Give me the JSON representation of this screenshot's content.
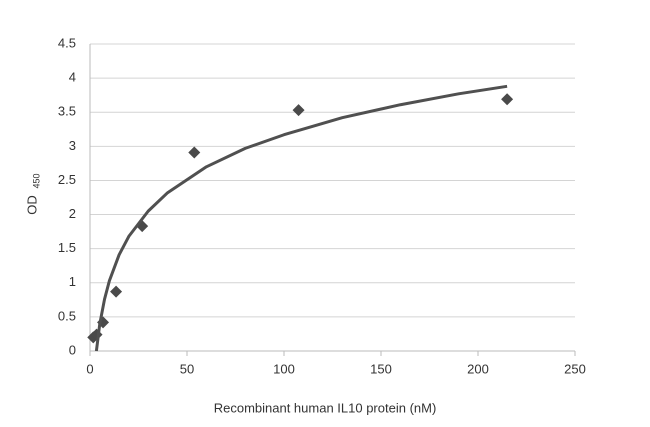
{
  "chart_data": {
    "type": "scatter",
    "xlabel": "Recombinant human IL10 protein (nM)",
    "ylabel": "OD",
    "ylabel_subscript": "450",
    "xlim": [
      0,
      250
    ],
    "xticks": [
      0,
      50,
      100,
      150,
      200,
      250
    ],
    "ylim": [
      0,
      4.5
    ],
    "yticks": [
      0,
      0.5,
      1,
      1.5,
      2,
      2.5,
      3,
      3.5,
      4,
      4.5
    ],
    "grid": true,
    "series": [
      {
        "type": "scatter",
        "color": "#4a4a4a",
        "x": [
          1.68,
          3.36,
          6.72,
          13.44,
          26.88,
          53.75,
          107.5,
          215
        ],
        "values": [
          0.2,
          0.24,
          0.42,
          0.87,
          1.83,
          2.91,
          3.53,
          3.69
        ]
      },
      {
        "type": "line",
        "color": "#505050",
        "x": [
          3.3,
          5,
          7.5,
          10,
          15,
          20,
          30,
          40,
          60,
          80,
          100,
          130,
          160,
          190,
          215
        ],
        "values": [
          0,
          0.39,
          0.76,
          1.03,
          1.41,
          1.68,
          2.05,
          2.32,
          2.7,
          2.97,
          3.17,
          3.42,
          3.61,
          3.77,
          3.88
        ]
      }
    ]
  }
}
